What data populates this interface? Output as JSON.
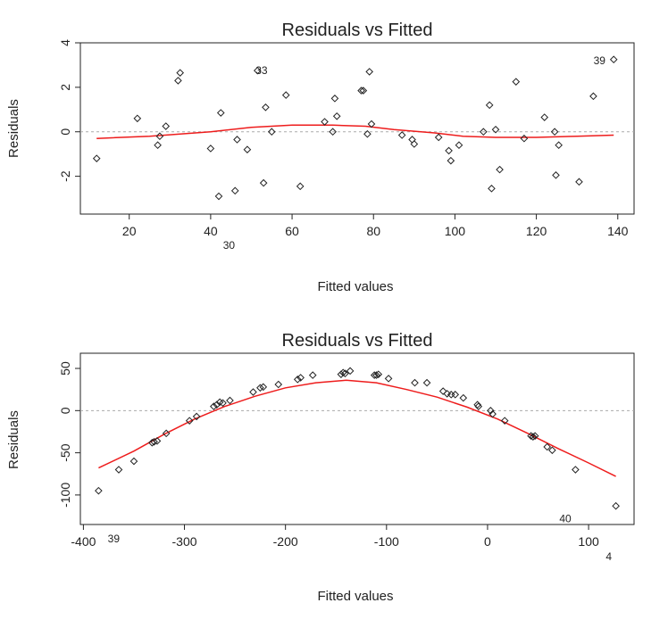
{
  "chart_data": [
    {
      "type": "scatter",
      "title": "Residuals vs Fitted",
      "xlabel": "Fitted values",
      "ylabel": "Residuals",
      "xlim": [
        8,
        144
      ],
      "ylim": [
        -3.7,
        4
      ],
      "xticks": [
        20,
        40,
        60,
        80,
        100,
        120,
        140
      ],
      "xtick_labels": [
        "20",
        "40",
        "60",
        "80",
        "100",
        "120",
        "140"
      ],
      "yticks": [
        -2,
        0,
        2,
        4
      ],
      "ytick_labels": [
        "-2",
        "0",
        "2",
        "4"
      ],
      "reference_line": 0,
      "points": [
        {
          "x": 12,
          "y": -1.2
        },
        {
          "x": 22,
          "y": 0.6
        },
        {
          "x": 27,
          "y": -0.6
        },
        {
          "x": 27.5,
          "y": -0.2
        },
        {
          "x": 29,
          "y": 0.25
        },
        {
          "x": 32,
          "y": 2.3
        },
        {
          "x": 32.5,
          "y": 2.65
        },
        {
          "x": 40,
          "y": -0.75
        },
        {
          "x": 42,
          "y": -2.9
        },
        {
          "x": 42.5,
          "y": 0.85
        },
        {
          "x": 46,
          "y": -2.65
        },
        {
          "x": 46.5,
          "y": -0.35
        },
        {
          "x": 49,
          "y": -0.8
        },
        {
          "x": 51.5,
          "y": 2.75
        },
        {
          "x": 53,
          "y": -2.3
        },
        {
          "x": 53.5,
          "y": 1.1
        },
        {
          "x": 55,
          "y": 0
        },
        {
          "x": 58.5,
          "y": 1.65
        },
        {
          "x": 62,
          "y": -2.45
        },
        {
          "x": 68,
          "y": 0.45
        },
        {
          "x": 70,
          "y": 0
        },
        {
          "x": 70.5,
          "y": 1.5
        },
        {
          "x": 71,
          "y": 0.7
        },
        {
          "x": 77,
          "y": 1.85
        },
        {
          "x": 77.5,
          "y": 1.85
        },
        {
          "x": 78.5,
          "y": -0.1
        },
        {
          "x": 79,
          "y": 2.7
        },
        {
          "x": 79.5,
          "y": 0.35
        },
        {
          "x": 87,
          "y": -0.15
        },
        {
          "x": 89.5,
          "y": -0.35
        },
        {
          "x": 90,
          "y": -0.55
        },
        {
          "x": 96,
          "y": -0.25
        },
        {
          "x": 98.5,
          "y": -0.85
        },
        {
          "x": 99,
          "y": -1.3
        },
        {
          "x": 101,
          "y": -0.6
        },
        {
          "x": 107,
          "y": 0
        },
        {
          "x": 108.5,
          "y": 1.2
        },
        {
          "x": 109,
          "y": -2.55
        },
        {
          "x": 110,
          "y": 0.1
        },
        {
          "x": 111,
          "y": -1.7
        },
        {
          "x": 115,
          "y": 2.25
        },
        {
          "x": 117,
          "y": -0.3
        },
        {
          "x": 122,
          "y": 0.65
        },
        {
          "x": 124.5,
          "y": 0
        },
        {
          "x": 124.8,
          "y": -1.95
        },
        {
          "x": 125.5,
          "y": -0.6
        },
        {
          "x": 130.5,
          "y": -2.25
        },
        {
          "x": 134,
          "y": 1.6
        },
        {
          "x": 139,
          "y": 3.25
        }
      ],
      "loess": [
        {
          "x": 12,
          "y": -0.3
        },
        {
          "x": 25,
          "y": -0.2
        },
        {
          "x": 40,
          "y": 0
        },
        {
          "x": 50,
          "y": 0.2
        },
        {
          "x": 60,
          "y": 0.3
        },
        {
          "x": 70,
          "y": 0.3
        },
        {
          "x": 78,
          "y": 0.25
        },
        {
          "x": 85,
          "y": 0.1
        },
        {
          "x": 95,
          "y": -0.05
        },
        {
          "x": 102,
          "y": -0.2
        },
        {
          "x": 110,
          "y": -0.25
        },
        {
          "x": 120,
          "y": -0.25
        },
        {
          "x": 130,
          "y": -0.2
        },
        {
          "x": 139,
          "y": -0.15
        }
      ],
      "point_labels": [
        {
          "text": "33",
          "x": 52.5,
          "y": 2.75
        },
        {
          "text": "39",
          "x": 135.5,
          "y": 3.2
        },
        {
          "text": "30",
          "x": 44.5,
          "y": -5.1
        }
      ],
      "colors": {
        "points": "#222222",
        "loess": "#ee1c1c",
        "reference": "#aaaaaa"
      },
      "grid": false
    },
    {
      "type": "scatter",
      "title": "Residuals vs Fitted",
      "xlabel": "Fitted values",
      "ylabel": "Residuals",
      "xlim": [
        -403,
        145
      ],
      "ylim": [
        -135,
        68
      ],
      "xticks": [
        -400,
        -300,
        -200,
        -100,
        0,
        100
      ],
      "xtick_labels": [
        "-400",
        "-300",
        "-200",
        "-100",
        "0",
        "100"
      ],
      "yticks": [
        -100,
        -50,
        0,
        50
      ],
      "ytick_labels": [
        "-100",
        "-50",
        "0",
        "50"
      ],
      "reference_line": 0,
      "points": [
        {
          "x": -385,
          "y": -95
        },
        {
          "x": -365,
          "y": -70
        },
        {
          "x": -350,
          "y": -60
        },
        {
          "x": -332,
          "y": -38
        },
        {
          "x": -330,
          "y": -37
        },
        {
          "x": -327,
          "y": -36
        },
        {
          "x": -318,
          "y": -27
        },
        {
          "x": -295,
          "y": -12
        },
        {
          "x": -288,
          "y": -7
        },
        {
          "x": -271,
          "y": 5
        },
        {
          "x": -268,
          "y": 7
        },
        {
          "x": -265,
          "y": 10
        },
        {
          "x": -262,
          "y": 9
        },
        {
          "x": -255,
          "y": 12
        },
        {
          "x": -232,
          "y": 22
        },
        {
          "x": -225,
          "y": 27
        },
        {
          "x": -222,
          "y": 28
        },
        {
          "x": -207,
          "y": 31
        },
        {
          "x": -188,
          "y": 37
        },
        {
          "x": -185,
          "y": 39
        },
        {
          "x": -173,
          "y": 42
        },
        {
          "x": -145,
          "y": 43
        },
        {
          "x": -143,
          "y": 45
        },
        {
          "x": -141,
          "y": 44
        },
        {
          "x": -136,
          "y": 47
        },
        {
          "x": -112,
          "y": 42
        },
        {
          "x": -110,
          "y": 42
        },
        {
          "x": -108,
          "y": 43
        },
        {
          "x": -98,
          "y": 38
        },
        {
          "x": -72,
          "y": 33
        },
        {
          "x": -60,
          "y": 33
        },
        {
          "x": -44,
          "y": 23
        },
        {
          "x": -40,
          "y": 20
        },
        {
          "x": -36,
          "y": 19
        },
        {
          "x": -32,
          "y": 19
        },
        {
          "x": -24,
          "y": 15
        },
        {
          "x": -10,
          "y": 7
        },
        {
          "x": -9,
          "y": 5
        },
        {
          "x": 3,
          "y": 0
        },
        {
          "x": 5,
          "y": -4
        },
        {
          "x": 17,
          "y": -12
        },
        {
          "x": 43,
          "y": -30
        },
        {
          "x": 45,
          "y": -31
        },
        {
          "x": 47,
          "y": -30
        },
        {
          "x": 59,
          "y": -43
        },
        {
          "x": 64,
          "y": -47
        },
        {
          "x": 87,
          "y": -70
        },
        {
          "x": 127,
          "y": -113
        }
      ],
      "loess": [
        {
          "x": -385,
          "y": -68
        },
        {
          "x": -350,
          "y": -48
        },
        {
          "x": -320,
          "y": -28
        },
        {
          "x": -290,
          "y": -10
        },
        {
          "x": -260,
          "y": 5
        },
        {
          "x": -230,
          "y": 17
        },
        {
          "x": -200,
          "y": 27
        },
        {
          "x": -170,
          "y": 33
        },
        {
          "x": -140,
          "y": 36
        },
        {
          "x": -110,
          "y": 33
        },
        {
          "x": -80,
          "y": 25
        },
        {
          "x": -50,
          "y": 16
        },
        {
          "x": -20,
          "y": 4
        },
        {
          "x": 10,
          "y": -10
        },
        {
          "x": 40,
          "y": -27
        },
        {
          "x": 70,
          "y": -45
        },
        {
          "x": 100,
          "y": -62
        },
        {
          "x": 127,
          "y": -78
        }
      ],
      "point_labels": [
        {
          "text": "39",
          "x": -370,
          "y": -152
        },
        {
          "text": "40",
          "x": 77,
          "y": -128
        },
        {
          "text": "4",
          "x": 120,
          "y": -173
        }
      ],
      "colors": {
        "points": "#222222",
        "loess": "#ee1c1c",
        "reference": "#aaaaaa"
      },
      "grid": false
    }
  ]
}
